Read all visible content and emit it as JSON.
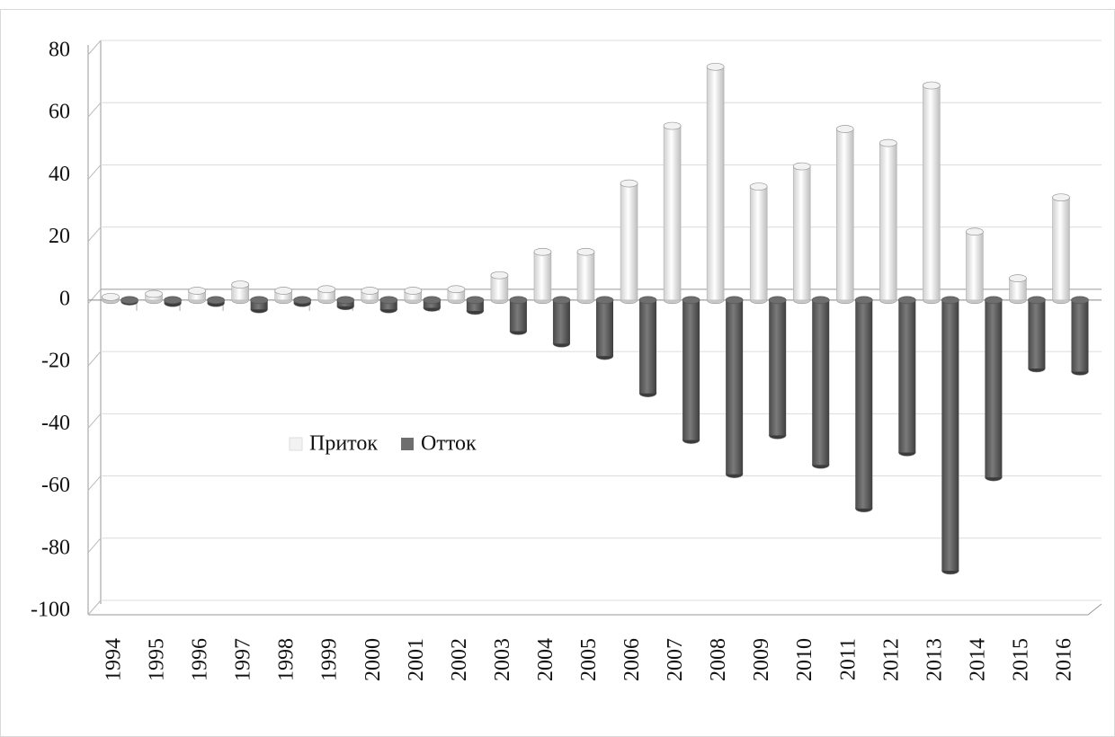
{
  "chart_data": {
    "type": "bar",
    "categories": [
      "1994",
      "1995",
      "1996",
      "1997",
      "1998",
      "1999",
      "2000",
      "2001",
      "2002",
      "2003",
      "2004",
      "2005",
      "2006",
      "2007",
      "2008",
      "2009",
      "2010",
      "2011",
      "2012",
      "2013",
      "2014",
      "2015",
      "2016"
    ],
    "series": [
      {
        "name": "Приток",
        "color": "#f2f2f2",
        "values": [
          1,
          2,
          3,
          5,
          3,
          3.5,
          3,
          3,
          3.5,
          8,
          15.5,
          15.5,
          37.5,
          56,
          75,
          36.5,
          43,
          55,
          50.5,
          69,
          22,
          7,
          33
        ]
      },
      {
        "name": "Отток",
        "color": "#6e6e6e",
        "values": [
          -0.5,
          -1,
          -1,
          -3,
          -1,
          -2,
          -3,
          -2.5,
          -3.5,
          -10,
          -14,
          -18,
          -30,
          -45,
          -56,
          -43.5,
          -53,
          -67,
          -49,
          -87,
          -57,
          -22,
          -23
        ]
      }
    ],
    "ylim": [
      -100,
      80
    ],
    "yticks": [
      -100,
      -80,
      -60,
      -40,
      -20,
      0,
      20,
      40,
      60,
      80
    ],
    "grid": true
  }
}
